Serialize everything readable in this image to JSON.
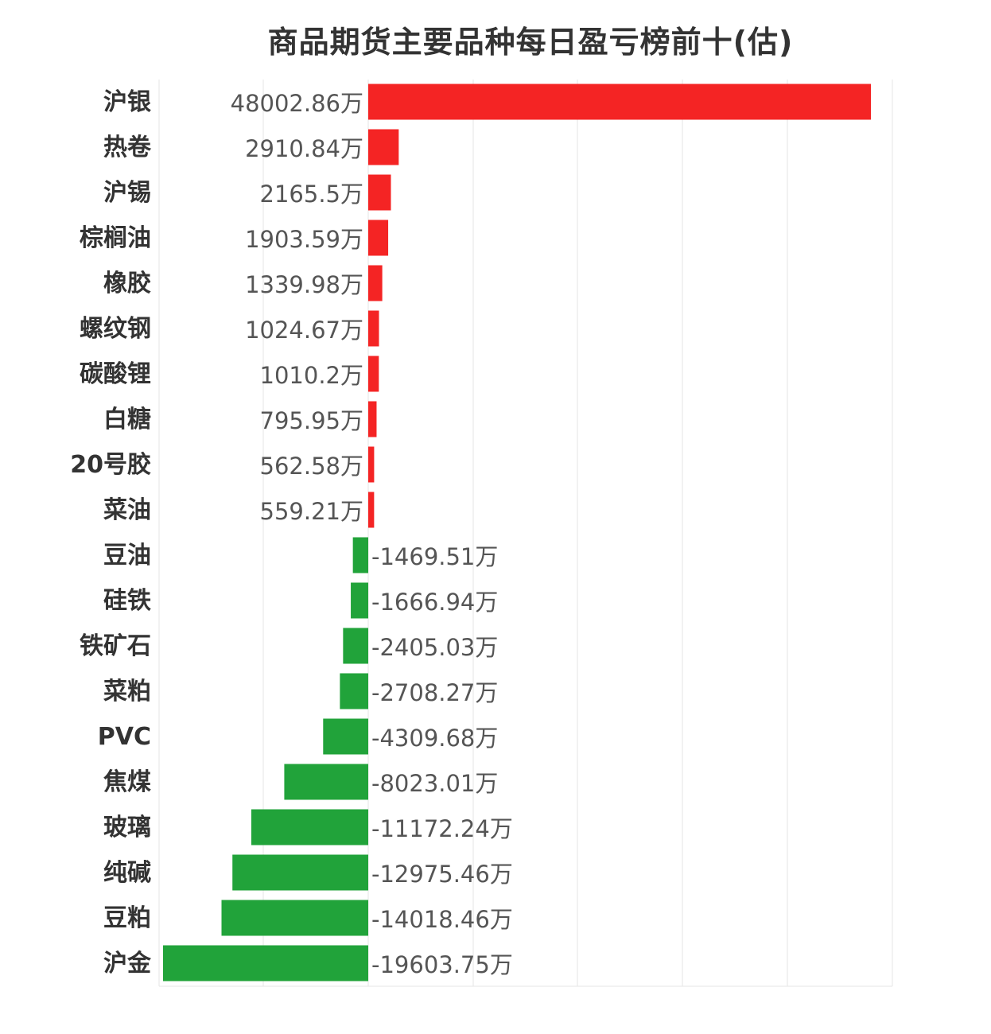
{
  "chart_data": {
    "type": "bar",
    "orientation": "horizontal",
    "title": "商品期货主要品种每日盈亏榜前十(估)",
    "unit": "万",
    "grid": true,
    "colors": {
      "positive": "#f42424",
      "negative": "#21a33a"
    },
    "xlim": [
      -19603.75,
      48002.86
    ],
    "categories": [
      "沪银",
      "热卷",
      "沪锡",
      "棕榈油",
      "橡胶",
      "螺纹钢",
      "碳酸锂",
      "白糖",
      "20号胶",
      "菜油",
      "豆油",
      "硅铁",
      "铁矿石",
      "菜粕",
      "PVC",
      "焦煤",
      "玻璃",
      "纯碱",
      "豆粕",
      "沪金"
    ],
    "values": [
      48002.86,
      2910.84,
      2165.5,
      1903.59,
      1339.98,
      1024.67,
      1010.2,
      795.95,
      562.58,
      559.21,
      -1469.51,
      -1666.94,
      -2405.03,
      -2708.27,
      -4309.68,
      -8023.01,
      -11172.24,
      -12975.46,
      -14018.46,
      -19603.75
    ],
    "value_labels": [
      "48002.86万",
      "2910.84万",
      "2165.5万",
      "1903.59万",
      "1339.98万",
      "1024.67万",
      "1010.2万",
      "795.95万",
      "562.58万",
      "559.21万",
      "-1469.51万",
      "-1666.94万",
      "-2405.03万",
      "-2708.27万",
      "-4309.68万",
      "-8023.01万",
      "-11172.24万",
      "-12975.46万",
      "-14018.46万",
      "-19603.75万"
    ]
  }
}
